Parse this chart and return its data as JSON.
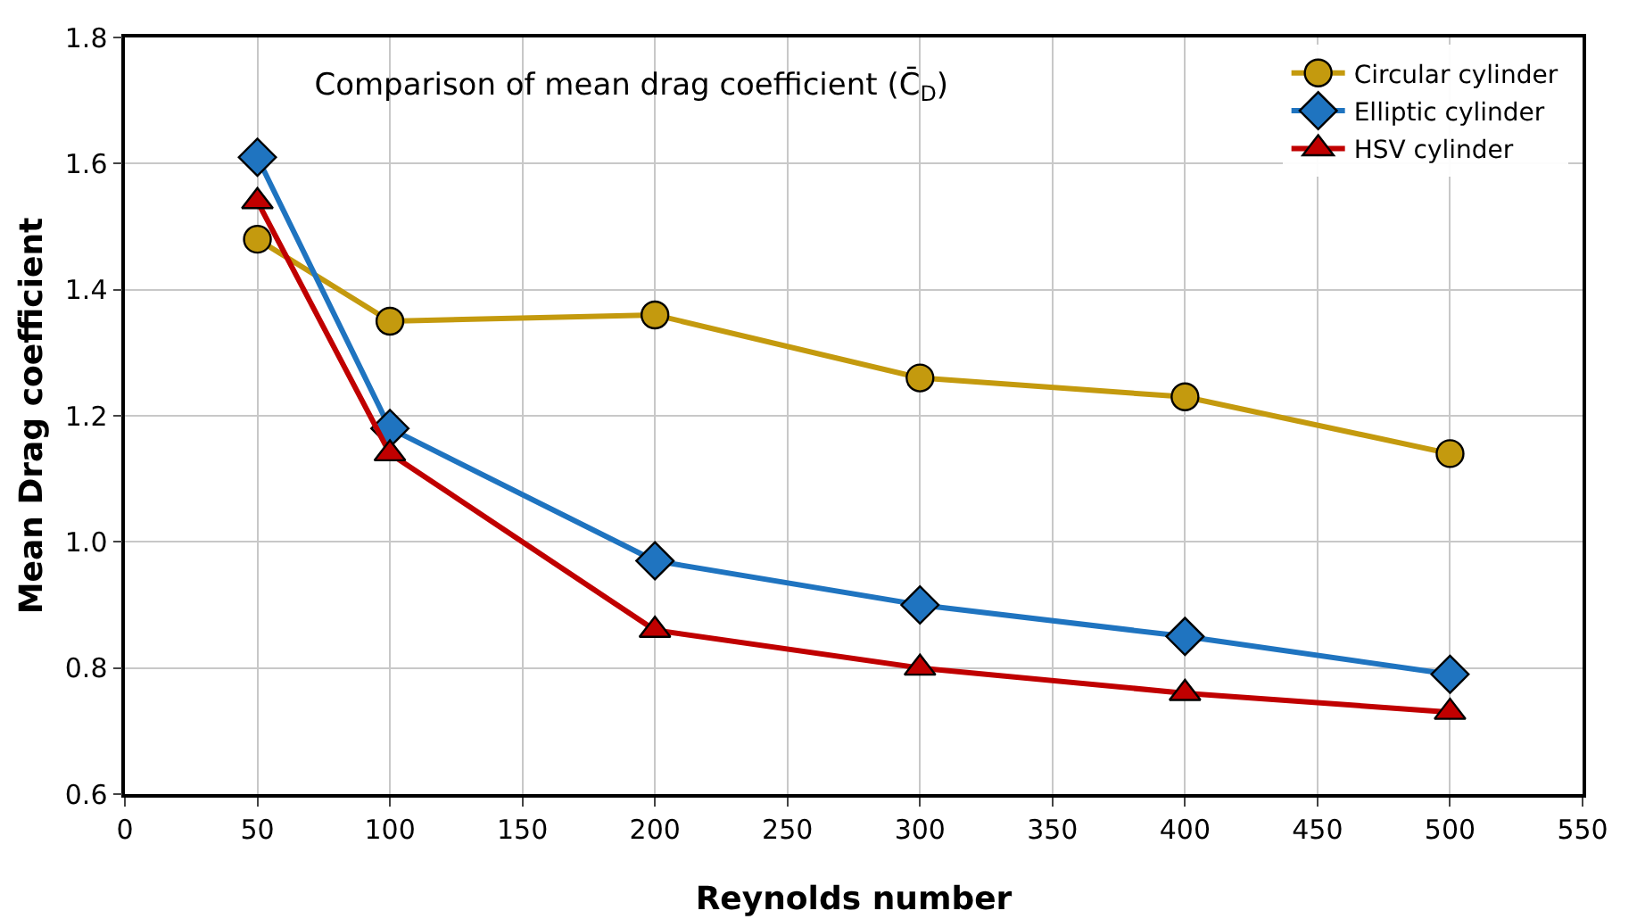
{
  "chart_data": {
    "type": "line",
    "title": "Comparison of mean drag coefficient (C̄$_{D}$)",
    "xlabel": "Reynolds number",
    "ylabel": "Mean Drag coefficient",
    "x": [
      50,
      100,
      200,
      300,
      400,
      500
    ],
    "series": [
      {
        "name": "Circular cylinder",
        "color": "#c49a0e",
        "marker": "circle",
        "values": [
          1.48,
          1.35,
          1.36,
          1.26,
          1.23,
          1.14
        ]
      },
      {
        "name": "Elliptic cylinder",
        "color": "#1f74c0",
        "marker": "diamond",
        "values": [
          1.61,
          1.18,
          0.97,
          0.9,
          0.85,
          0.79
        ]
      },
      {
        "name": "HSV cylinder",
        "color": "#c00000",
        "marker": "triangle",
        "values": [
          1.54,
          1.14,
          0.86,
          0.8,
          0.76,
          0.73
        ]
      }
    ],
    "xlim": [
      0,
      550
    ],
    "xticks": [
      0,
      50,
      100,
      150,
      200,
      250,
      300,
      350,
      400,
      450,
      500,
      550
    ],
    "ylim": [
      0.6,
      1.8
    ],
    "yticks": [
      {
        "value": 0.6,
        "label": "0.6"
      },
      {
        "value": 0.8,
        "label": "0.8"
      },
      {
        "value": 1.0,
        "label": "1.0"
      },
      {
        "value": 1.2,
        "label": "1.2"
      },
      {
        "value": 1.4,
        "label": "1.4"
      },
      {
        "value": 1.6,
        "label": "1.6"
      },
      {
        "value": 1.8,
        "label": "1.8"
      }
    ],
    "grid": true,
    "legend": "top right",
    "line_style": "solid"
  }
}
